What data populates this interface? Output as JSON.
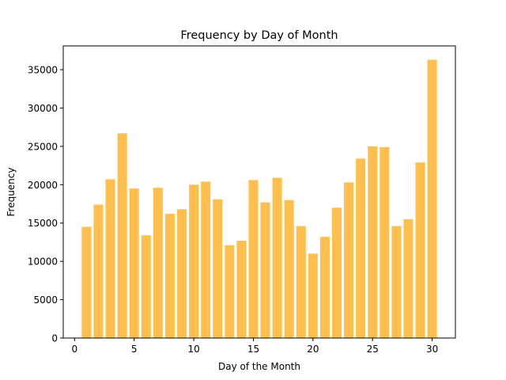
{
  "chart_data": {
    "type": "bar",
    "title": "Frequency by Day of Month",
    "xlabel": "Day of the Month",
    "ylabel": "Frequency",
    "x": [
      1,
      2,
      3,
      4,
      5,
      6,
      7,
      8,
      9,
      10,
      11,
      12,
      13,
      14,
      15,
      16,
      17,
      18,
      19,
      20,
      21,
      22,
      23,
      24,
      25,
      26,
      27,
      28,
      29,
      30
    ],
    "values": [
      14500,
      17400,
      20700,
      26700,
      19500,
      13400,
      19600,
      16200,
      16800,
      20000,
      20400,
      18100,
      12100,
      12700,
      20600,
      17700,
      20900,
      18000,
      14600,
      11000,
      13200,
      17000,
      20300,
      23400,
      25000,
      24900,
      14600,
      15500,
      22900,
      36300
    ],
    "xlim": [
      -0.95,
      31.95
    ],
    "ylim": [
      0,
      38100
    ],
    "xticks": [
      0,
      5,
      10,
      15,
      20,
      25,
      30
    ],
    "yticks": [
      0,
      5000,
      10000,
      15000,
      20000,
      25000,
      30000,
      35000
    ],
    "bar_color": "#ffbf4d",
    "grid": false,
    "legend": "none"
  }
}
